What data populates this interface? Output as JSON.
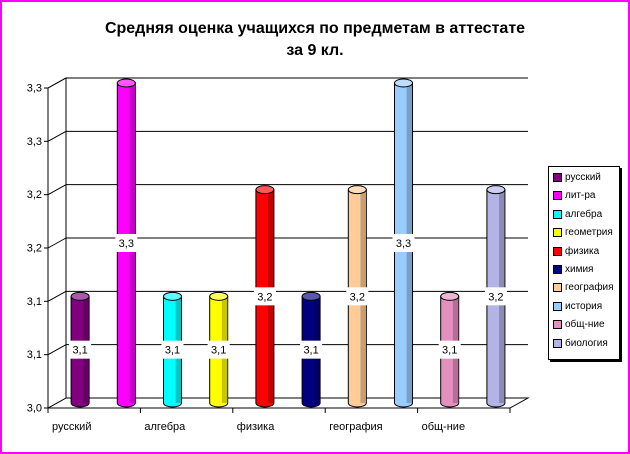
{
  "chart_data": {
    "type": "bar",
    "title": "Средняя оценка учащихся по предметам в аттестате",
    "subtitle": "за 9  кл.",
    "ylim": [
      3.0,
      3.3
    ],
    "y_tick_labels": [
      "3,0",
      "3,1",
      "3,1",
      "3,2",
      "3,2",
      "3,3",
      "3,3"
    ],
    "x_tick_labels": [
      "русский",
      "алгебра",
      "физика",
      "география",
      "общ-ние"
    ],
    "legend_position": "right",
    "grid": true,
    "series": [
      {
        "name": "русский",
        "value": 3.1,
        "label": "3,1",
        "color": "#800080"
      },
      {
        "name": "лит-ра",
        "value": 3.3,
        "label": "3,3",
        "color": "#ff00ff"
      },
      {
        "name": "алгебра",
        "value": 3.1,
        "label": "3,1",
        "color": "#00ffff"
      },
      {
        "name": "геометрия",
        "value": 3.1,
        "label": "3,1",
        "color": "#ffff00"
      },
      {
        "name": "физика",
        "value": 3.2,
        "label": "3,2",
        "color": "#ff0000"
      },
      {
        "name": "химия",
        "value": 3.1,
        "label": "3,1",
        "color": "#000080"
      },
      {
        "name": "география",
        "value": 3.2,
        "label": "3,2",
        "color": "#ffcc99"
      },
      {
        "name": "история",
        "value": 3.3,
        "label": "3,3",
        "color": "#99ccff"
      },
      {
        "name": "общ-ние",
        "value": 3.1,
        "label": "3,1",
        "color": "#e58fbe"
      },
      {
        "name": "биология",
        "value": 3.2,
        "label": "3,2",
        "color": "#b3b3e6"
      }
    ]
  }
}
